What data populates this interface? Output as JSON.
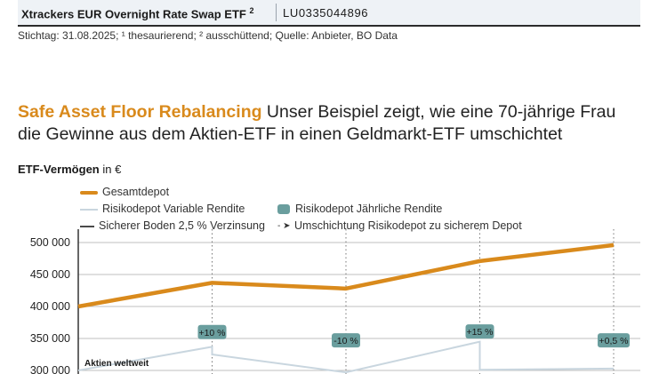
{
  "table_row": {
    "fund_name": "Xtrackers EUR Overnight Rate Swap ETF",
    "footnote_mark": "2",
    "isin": "LU0335044896"
  },
  "footnote": "Stichtag: 31.08.2025; ¹ thesaurierend; ² ausschüttend; Quelle: Anbieter, BO Data",
  "headline": {
    "accent": "Safe Asset Floor Rebalancing",
    "text_line1": " Unser Beispiel zeigt, wie eine 70-jährige Frau",
    "text_line2": "die Gewinne aus dem Aktien-ETF in einen Geldmarkt-ETF umschichtet"
  },
  "subtitle": {
    "bold": "ETF-Vermögen",
    "rest": " in €"
  },
  "legend": {
    "gesamtdepot": "Gesamtdepot",
    "variable": "Risikodepot Variable Rendite",
    "jaehrlich": "Risikodepot Jährliche Rendite",
    "boden": "Sicherer Boden 2,5 % Verzinsung",
    "umschichtung": "Umschichtung Risikodepot zu sicherem Depot"
  },
  "colors": {
    "gesamtdepot": "#d98a1c",
    "variable": "#c9d6df",
    "badge": "#6a9e9e",
    "grid": "#bfbfbf",
    "axis": "#333333"
  },
  "chart_data": {
    "type": "line",
    "ylim": [
      300000,
      525000
    ],
    "yticks": [
      "500 000",
      "450 000",
      "400 000",
      "350 000",
      "300 000"
    ],
    "ytick_values": [
      500000,
      450000,
      400000,
      350000,
      300000
    ],
    "x": [
      0,
      1,
      2,
      3,
      4
    ],
    "series": [
      {
        "name": "Gesamtdepot",
        "values": [
          400000,
          437000,
          428000,
          471000,
          496000
        ]
      }
    ],
    "variable_series": [
      {
        "x": 0,
        "y": 300000
      },
      {
        "x": 1,
        "y": 337000
      },
      {
        "x": 1,
        "y": 325000
      },
      {
        "x": 2,
        "y": 297000
      },
      {
        "x": 3,
        "y": 345000
      },
      {
        "x": 3,
        "y": 301000
      },
      {
        "x": 4,
        "y": 303000
      }
    ],
    "annual_returns": [
      {
        "x": 1,
        "label": "+10 %",
        "y": 360000
      },
      {
        "x": 2,
        "label": "-10 %",
        "y": 347000
      },
      {
        "x": 3,
        "label": "+15 %",
        "y": 361000
      },
      {
        "x": 4,
        "label": "+0,5 %",
        "y": 347000
      }
    ],
    "annotation": "Aktien weltweit"
  }
}
